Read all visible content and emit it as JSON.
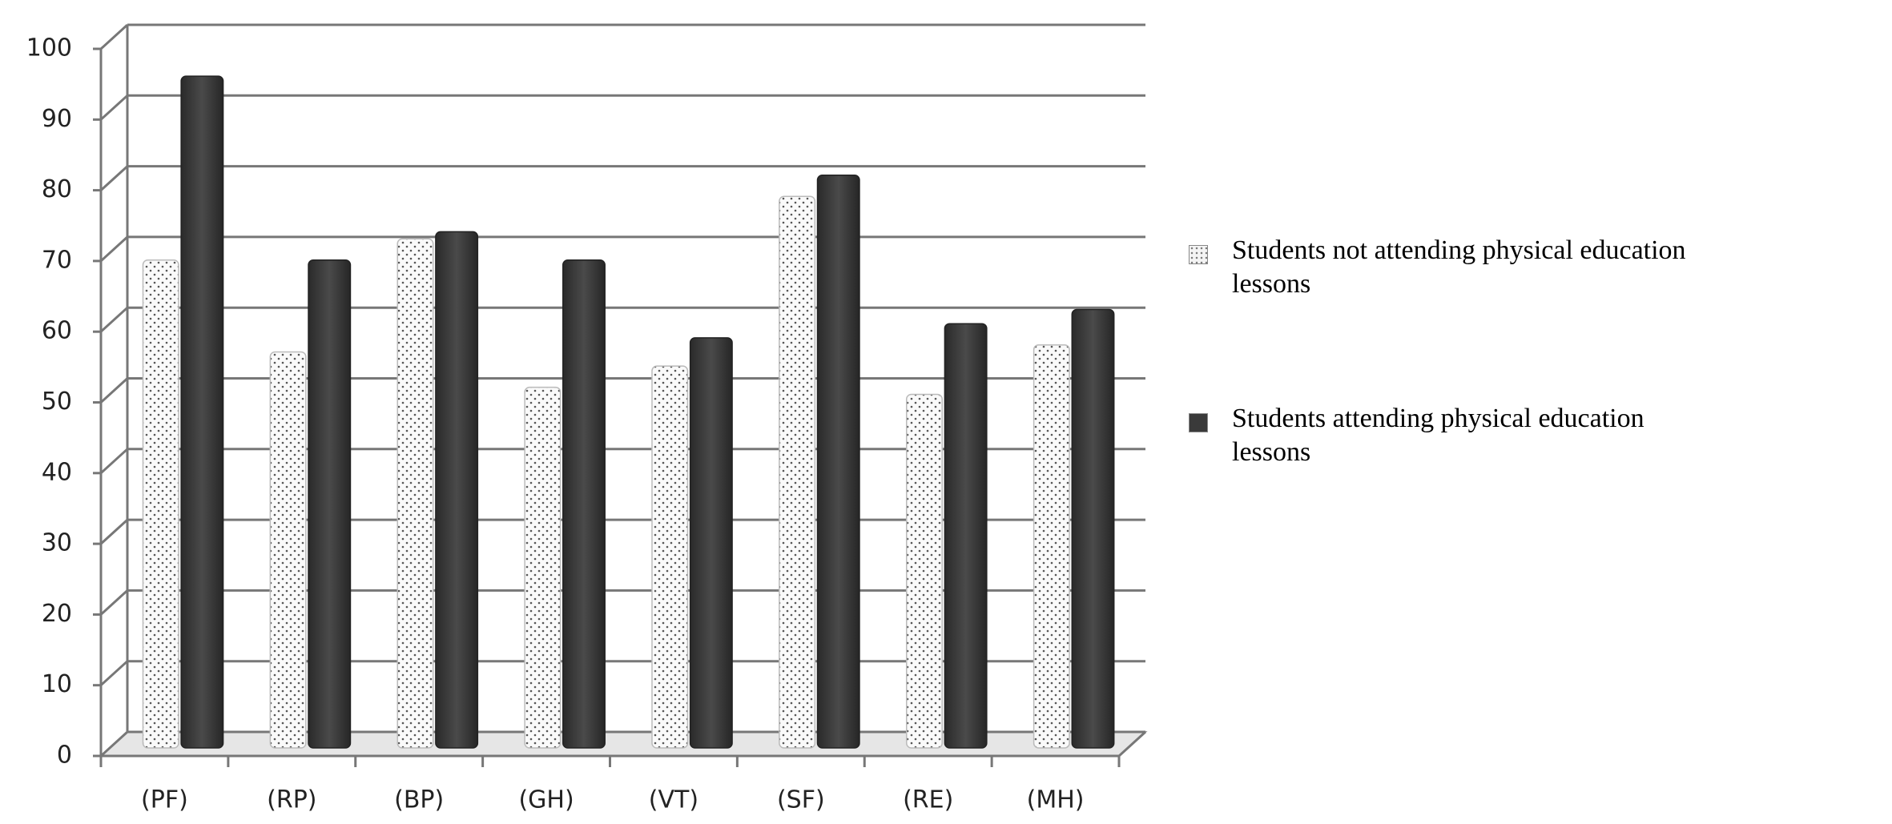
{
  "chart_data": {
    "type": "bar",
    "categories": [
      "(PF)",
      "(RP)",
      "(BP)",
      "(GH)",
      "(VT)",
      "(SF)",
      "(RE)",
      "(MH)"
    ],
    "series": [
      {
        "name": "Students not attending physical education lessons",
        "color": "#f4f4f4",
        "values": [
          69,
          56,
          72,
          51,
          54,
          78,
          50,
          57
        ]
      },
      {
        "name": "Students attending physical education lessons",
        "color": "#3a3a3a",
        "values": [
          95,
          69,
          73,
          69,
          58,
          81,
          60,
          62
        ]
      }
    ],
    "ylim": [
      0,
      100
    ],
    "yticks": [
      0,
      10,
      20,
      30,
      40,
      50,
      60,
      70,
      80,
      90,
      100
    ],
    "grid": true,
    "legend": "right"
  }
}
